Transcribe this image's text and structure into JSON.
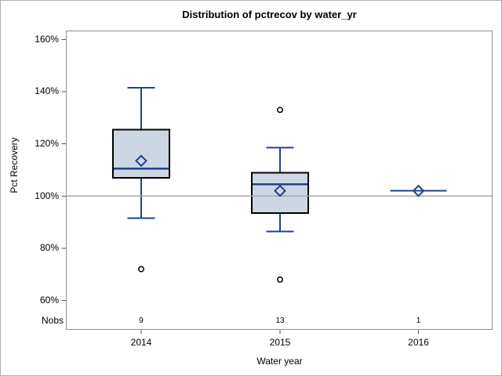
{
  "chart_data": {
    "type": "boxplot",
    "title": "Distribution of pctrecov by water_yr",
    "xlabel": "Water year",
    "ylabel": "Pct Recovery",
    "nobs_row_label": "Nobs",
    "ylim": [
      48,
      164
    ],
    "ytick_values": [
      160,
      140,
      120,
      100,
      80,
      60
    ],
    "ytick_labels": [
      "160%",
      "140%",
      "120%",
      "100%",
      "80%",
      "60%"
    ],
    "reference_line": 100,
    "grid": "off",
    "legend": "none",
    "categories": [
      "2014",
      "2015",
      "2016"
    ],
    "nobs": [
      "9",
      "13",
      "1"
    ],
    "series": [
      {
        "category": "2014",
        "n": 9,
        "whisker_low": 91.5,
        "q1": 107,
        "median": 110.5,
        "mean": 113.5,
        "q3": 125.5,
        "whisker_high": 141.5,
        "outliers": [
          72
        ]
      },
      {
        "category": "2015",
        "n": 13,
        "whisker_low": 86.5,
        "q1": 93.5,
        "median": 104.5,
        "mean": 102,
        "q3": 109,
        "whisker_high": 118.5,
        "outliers": [
          133,
          68
        ]
      },
      {
        "category": "2016",
        "n": 1,
        "whisker_low": 102,
        "q1": 102,
        "median": 102,
        "mean": 102,
        "q3": 102,
        "whisker_high": 102,
        "outliers": []
      }
    ],
    "colors": {
      "line": "#204390",
      "box_fill": "#cdd7e3",
      "box_border": "#000000",
      "outlier": "#000000",
      "reference_line": "#a8a8a8",
      "frame": "#8f8f8f",
      "tick": "#595959",
      "text": "#000000"
    }
  }
}
